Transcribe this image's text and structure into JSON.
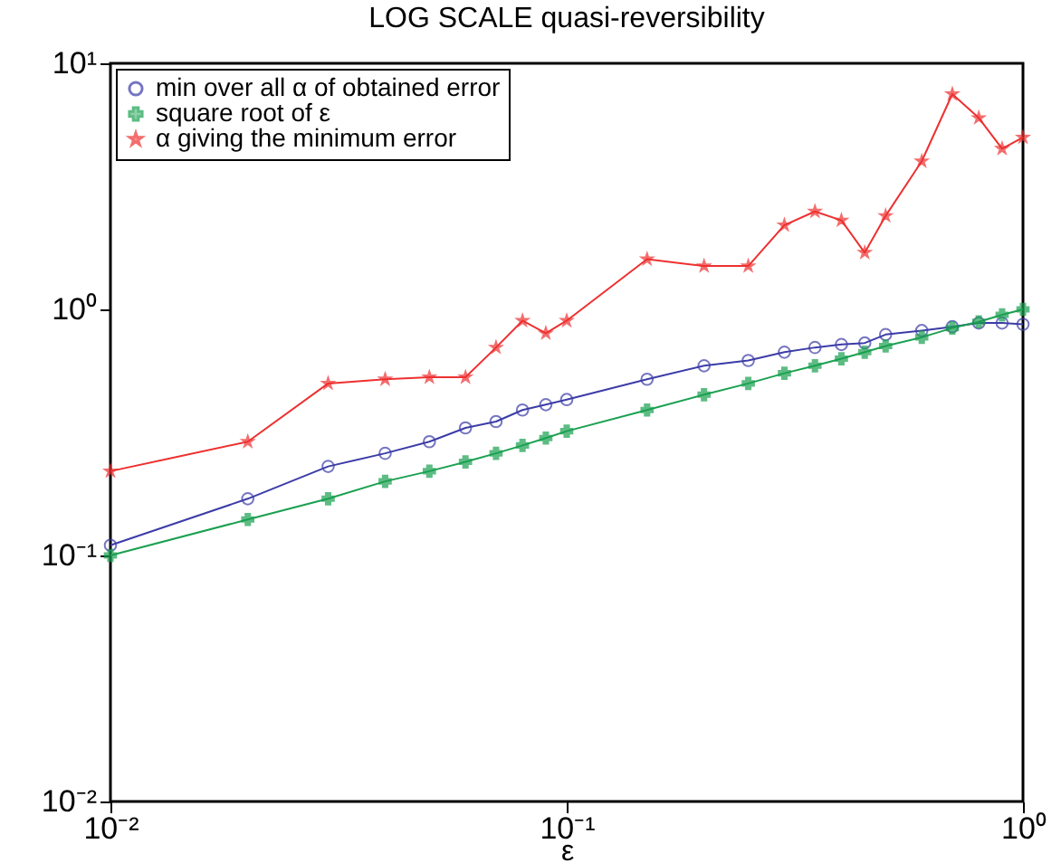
{
  "chart_data": {
    "type": "line",
    "title": "LOG SCALE quasi-reversibility",
    "xlabel": "ε",
    "x": [
      0.01,
      0.02,
      0.03,
      0.04,
      0.05,
      0.06,
      0.07,
      0.08,
      0.09,
      0.1,
      0.15,
      0.2,
      0.25,
      0.3,
      0.35,
      0.4,
      0.45,
      0.5,
      0.6,
      0.7,
      0.8,
      0.9,
      1.0
    ],
    "series": [
      {
        "name": "min over all α of obtained error",
        "color": "#3c3ca8",
        "marker": "circle",
        "values": [
          0.11,
          0.17,
          0.23,
          0.26,
          0.29,
          0.33,
          0.35,
          0.39,
          0.41,
          0.43,
          0.52,
          0.59,
          0.62,
          0.67,
          0.7,
          0.72,
          0.73,
          0.79,
          0.82,
          0.85,
          0.88,
          0.88,
          0.87
        ]
      },
      {
        "name": "square root of ε",
        "color": "#1aa050",
        "marker": "cross",
        "values": [
          0.1,
          0.14,
          0.17,
          0.2,
          0.22,
          0.24,
          0.26,
          0.28,
          0.3,
          0.32,
          0.39,
          0.45,
          0.5,
          0.55,
          0.59,
          0.63,
          0.67,
          0.71,
          0.77,
          0.84,
          0.89,
          0.95,
          1.0
        ]
      },
      {
        "name": "α giving the minimum error",
        "color": "#ee3030",
        "marker": "star",
        "values": [
          0.22,
          0.29,
          0.5,
          0.52,
          0.53,
          0.53,
          0.7,
          0.9,
          0.8,
          0.9,
          1.6,
          1.5,
          1.5,
          2.2,
          2.5,
          2.3,
          1.7,
          2.4,
          4.0,
          7.5,
          6.0,
          4.5,
          5.0
        ]
      }
    ],
    "log": "xy",
    "xlim": [
      0.01,
      1
    ],
    "ylim": [
      0.01,
      10
    ],
    "xticks": [
      {
        "value": 0.01,
        "label": "10⁻²"
      },
      {
        "value": 0.1,
        "label": "10⁻¹"
      },
      {
        "value": 1,
        "label": "10⁰"
      }
    ],
    "yticks": [
      {
        "value": 0.01,
        "label": "10⁻²"
      },
      {
        "value": 0.1,
        "label": "10⁻¹"
      },
      {
        "value": 1,
        "label": "10⁰"
      },
      {
        "value": 10,
        "label": "10¹"
      }
    ],
    "legend": "top left",
    "grid": false
  }
}
